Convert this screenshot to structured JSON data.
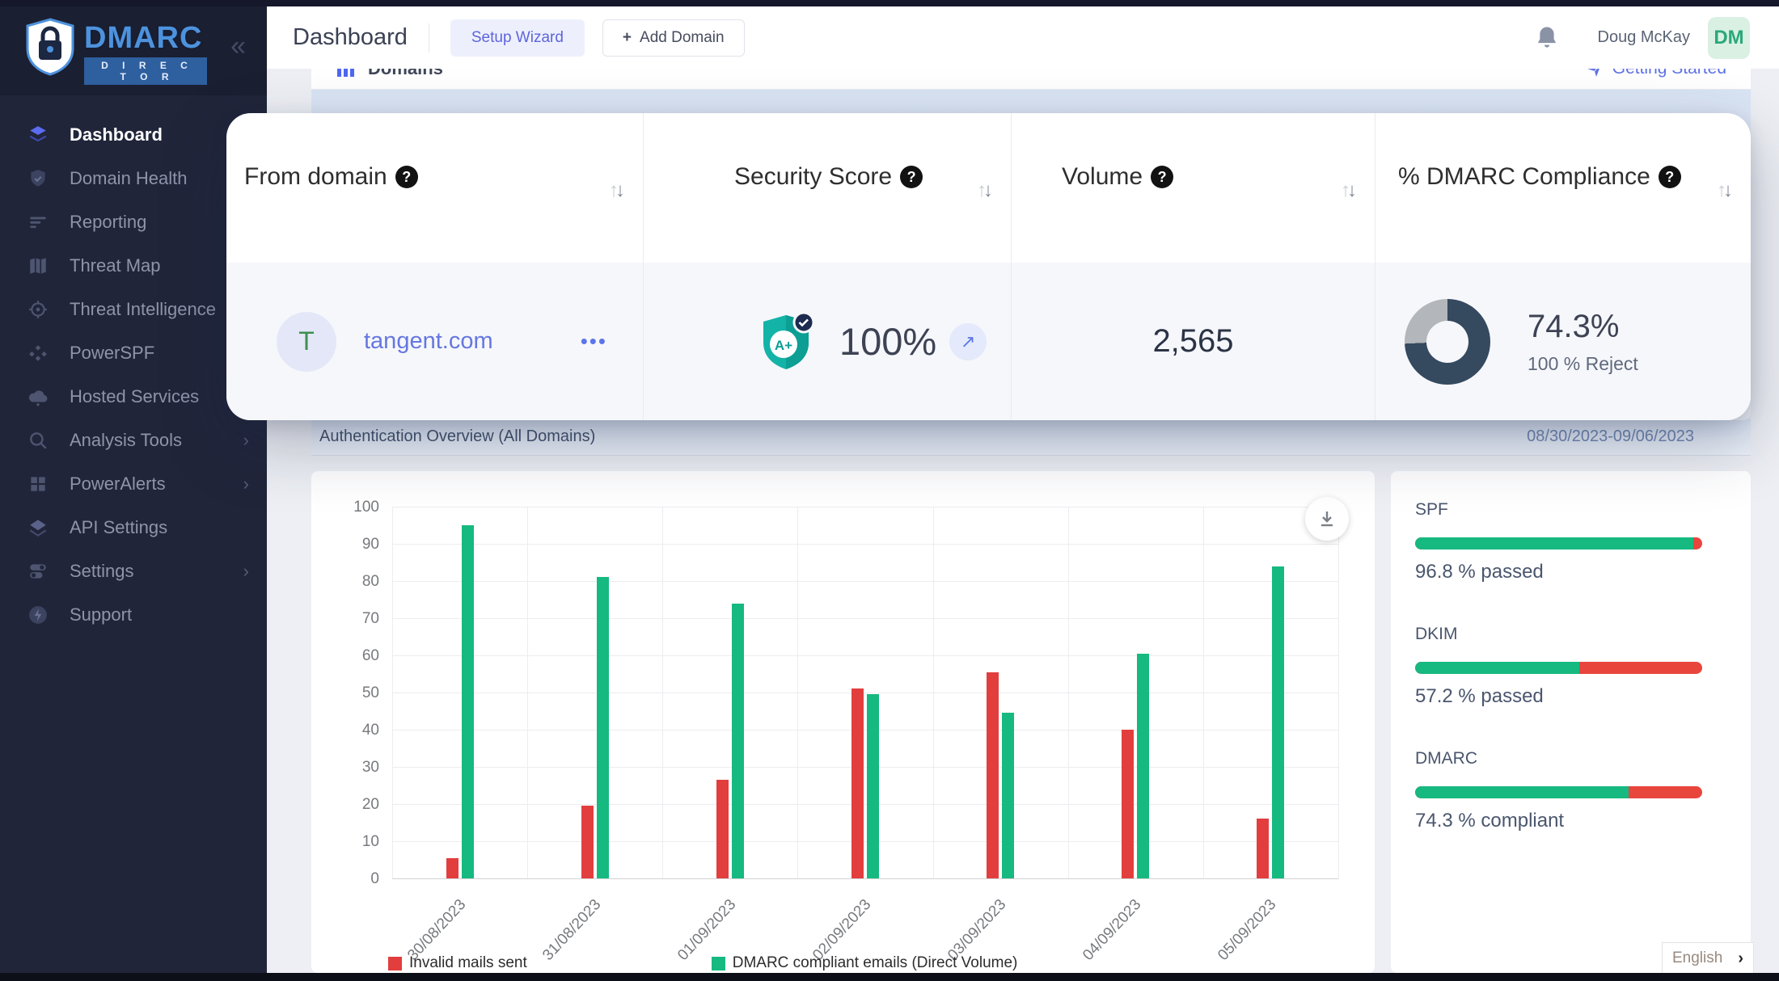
{
  "brand": {
    "name": "DMARC",
    "sub": "D I R E C T O R",
    "collapse": "«"
  },
  "sidebar": {
    "items": [
      {
        "label": "Dashboard",
        "icon": "layers-icon",
        "active": true
      },
      {
        "label": "Domain Health",
        "icon": "shield-check-icon"
      },
      {
        "label": "Reporting",
        "icon": "report-lines-icon"
      },
      {
        "label": "Threat Map",
        "icon": "map-icon"
      },
      {
        "label": "Threat Intelligence",
        "icon": "target-icon"
      },
      {
        "label": "PowerSPF",
        "icon": "cluster-icon"
      },
      {
        "label": "Hosted Services",
        "icon": "cloud-icon"
      },
      {
        "label": "Analysis Tools",
        "icon": "search-icon",
        "chevron": "›"
      },
      {
        "label": "PowerAlerts",
        "icon": "grid-icon",
        "chevron": "›"
      },
      {
        "label": "API Settings",
        "icon": "diamond-icon"
      },
      {
        "label": "Settings",
        "icon": "toggles-icon",
        "chevron": "›"
      },
      {
        "label": "Support",
        "icon": "bolt-icon"
      }
    ]
  },
  "topbar": {
    "title": "Dashboard",
    "setup_wizard": "Setup Wizard",
    "add_domain_plus": "+",
    "add_domain": "Add Domain"
  },
  "user": {
    "name": "Doug McKay",
    "initials": "DM"
  },
  "domains_card": {
    "title": "Domains",
    "getting_started": "Getting Started"
  },
  "table": {
    "columns": [
      {
        "label": "From domain",
        "help": "?"
      },
      {
        "label": "Security Score",
        "help": "?"
      },
      {
        "label": "Volume",
        "help": "?"
      },
      {
        "label": "% DMARC Compliance",
        "help": "?"
      }
    ],
    "sort_up": "↑",
    "sort_down": "↓",
    "row": {
      "initial": "T",
      "domain": "tangent.com",
      "menu": "•••",
      "grade": "A+",
      "score": "100%",
      "score_link": "↗",
      "volume": "2,565",
      "compliance_pct": "74.3%",
      "compliance_value": 74.3,
      "policy": "100 % Reject",
      "donut_filled_color": "#35495f",
      "donut_rest_color": "#b3b6ba"
    }
  },
  "overview_band": {
    "title": "Authentication Overview (All Domains)",
    "date_range": "08/30/2023-09/06/2023"
  },
  "chart_data": {
    "type": "bar",
    "title": "Authentication Overview (All Domains)",
    "categories": [
      "30/08/2023",
      "31/08/2023",
      "01/09/2023",
      "02/09/2023",
      "03/09/2023",
      "04/09/2023",
      "05/09/2023"
    ],
    "series": [
      {
        "name": "Invalid mails sent",
        "color": "#e23e3e",
        "values": [
          5.5,
          19.5,
          26.5,
          51,
          55.5,
          40,
          16
        ]
      },
      {
        "name": "DMARC compliant emails (Direct Volume)",
        "color": "#16b97f",
        "values": [
          95,
          81,
          74,
          49.5,
          44.5,
          60.5,
          84
        ]
      }
    ],
    "xlabel": "",
    "ylabel": "",
    "ylim": [
      0,
      100
    ],
    "ytick_step": 10,
    "grid": true,
    "legend_position": "bottom"
  },
  "auth_panel": {
    "metrics": [
      {
        "name": "SPF",
        "value": 96.8,
        "caption": "96.8 % passed"
      },
      {
        "name": "DKIM",
        "value": 57.2,
        "caption": "57.2 % passed"
      },
      {
        "name": "DMARC",
        "value": 74.3,
        "caption": "74.3 % compliant"
      }
    ],
    "passed_color": "#16b97f",
    "failed_color": "#e8453c"
  },
  "language": {
    "label": "English",
    "chevron": "›"
  }
}
